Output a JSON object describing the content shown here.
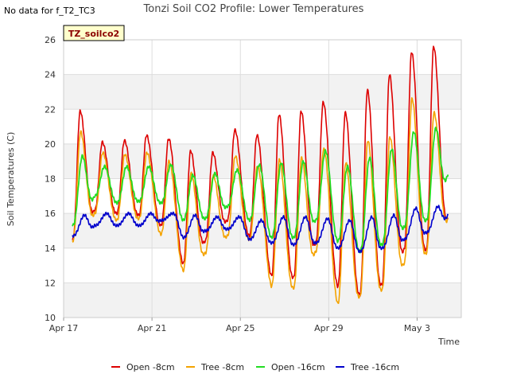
{
  "note": "No data for f_T2_TC3",
  "chart_data": {
    "type": "line",
    "title": "Tonzi Soil CO2 Profile: Lower Temperatures",
    "xlabel": "Time",
    "ylabel": "Soil Temperatures (C)",
    "badge": "TZ_soilco2",
    "ylim": [
      10,
      26
    ],
    "yticks": [
      10,
      12,
      14,
      16,
      18,
      20,
      22,
      24,
      26
    ],
    "xlim_days": [
      0,
      18
    ],
    "xticks": [
      {
        "day": 0,
        "label": "Apr 17"
      },
      {
        "day": 4,
        "label": "Apr 21"
      },
      {
        "day": 8,
        "label": "Apr 25"
      },
      {
        "day": 12,
        "label": "Apr 29"
      },
      {
        "day": 16,
        "label": "May 3"
      }
    ],
    "grid": true,
    "legend_position": "bottom",
    "days": [
      0.4,
      1.4,
      2.4,
      3.4,
      4.4,
      5.4,
      6.4,
      7.4,
      8.4,
      9.4,
      10.4,
      11.4,
      12.4,
      13.4,
      14.4,
      15.4,
      16.4,
      17.4
    ],
    "series": [
      {
        "name": "Open -8cm",
        "color": "#dd0000",
        "phase": 0.35,
        "weight": 1.6,
        "min": [
          14.5,
          16.2,
          16.0,
          15.9,
          15.3,
          13.1,
          14.4,
          15.6,
          14.7,
          12.4,
          12.3,
          14.3,
          11.8,
          11.3,
          11.9,
          13.9,
          13.9,
          15.8
        ],
        "max": [
          21.9,
          20.1,
          20.2,
          20.5,
          20.3,
          19.6,
          19.5,
          20.8,
          20.5,
          21.7,
          21.9,
          22.4,
          21.8,
          23.1,
          24.0,
          25.3,
          25.6,
          17.0
        ]
      },
      {
        "name": "Tree -8cm",
        "color": "#f4a300",
        "phase": 0.37,
        "weight": 1.6,
        "min": [
          14.4,
          16.0,
          15.6,
          15.7,
          14.8,
          12.7,
          13.7,
          14.7,
          14.5,
          11.8,
          11.7,
          13.8,
          10.8,
          11.2,
          11.6,
          13.1,
          13.7,
          15.7
        ],
        "max": [
          20.7,
          19.5,
          19.4,
          19.5,
          19.0,
          18.3,
          18.2,
          19.3,
          18.7,
          19.1,
          19.2,
          19.7,
          18.9,
          20.2,
          20.4,
          22.6,
          21.8,
          16.2
        ]
      },
      {
        "name": "Open -16cm",
        "color": "#22dd22",
        "phase": 0.45,
        "weight": 1.8,
        "min": [
          15.3,
          17.0,
          16.6,
          16.7,
          16.6,
          15.6,
          15.7,
          16.4,
          15.6,
          14.6,
          14.6,
          15.6,
          14.4,
          13.8,
          14.2,
          15.2,
          15.6,
          18.3
        ],
        "max": [
          19.3,
          18.7,
          18.7,
          18.7,
          18.8,
          18.2,
          18.3,
          18.5,
          18.8,
          18.9,
          19.0,
          19.6,
          18.7,
          19.2,
          19.7,
          20.7,
          20.9,
          18.6
        ]
      },
      {
        "name": "Tree -16cm",
        "color": "#0000cc",
        "phase": 0.55,
        "weight": 1.6,
        "min": [
          14.7,
          15.3,
          15.3,
          15.3,
          15.6,
          14.6,
          15.0,
          15.1,
          14.5,
          14.3,
          14.2,
          14.3,
          14.0,
          13.8,
          14.0,
          14.5,
          14.9,
          15.9
        ],
        "max": [
          15.9,
          16.0,
          16.0,
          16.0,
          16.0,
          15.9,
          15.8,
          15.8,
          15.6,
          15.8,
          15.8,
          15.7,
          15.6,
          15.8,
          15.9,
          16.3,
          16.4,
          16.1
        ]
      }
    ]
  }
}
